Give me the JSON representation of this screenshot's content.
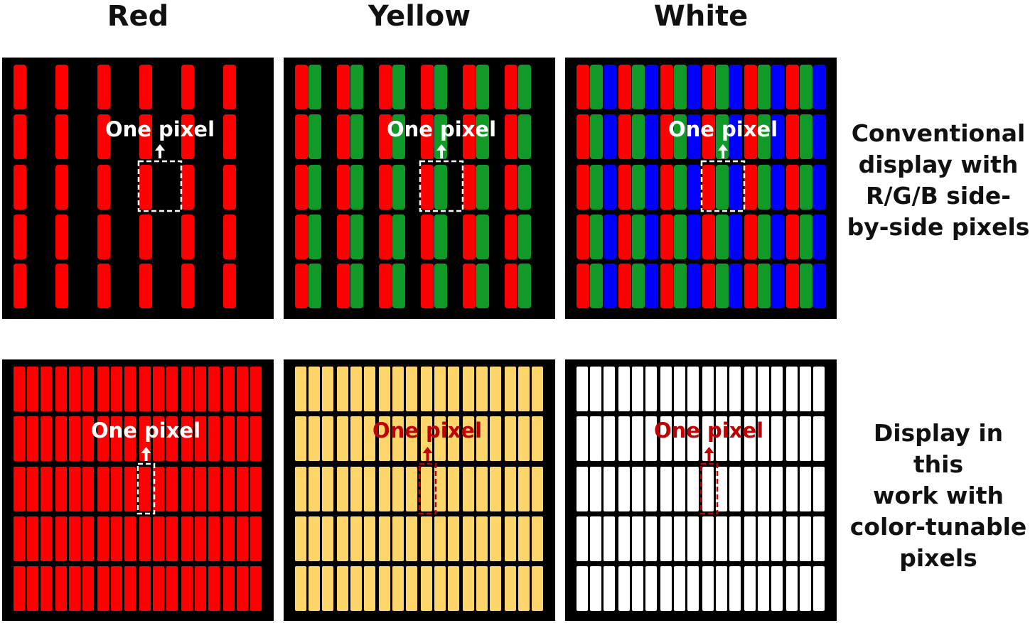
{
  "columns": [
    {
      "title": "Red",
      "key": "red"
    },
    {
      "title": "Yellow",
      "key": "yellow"
    },
    {
      "title": "White",
      "key": "white"
    }
  ],
  "rows": [
    {
      "key": "conventional",
      "label_lines": [
        "Conventional",
        "display with",
        "R/G/B side-",
        "by-side pixels"
      ]
    },
    {
      "key": "tunable",
      "label_lines": [
        "Display in this",
        "work with",
        "color-tunable",
        "pixels"
      ]
    }
  ],
  "pixel_label": "One pixel",
  "colors": {
    "red": "#ff0000",
    "green": "#119a28",
    "blue": "#0000ff",
    "yellow": "#fcd66a",
    "white": "#ffffff",
    "dark_red": "#c00000",
    "background": "#000000"
  }
}
